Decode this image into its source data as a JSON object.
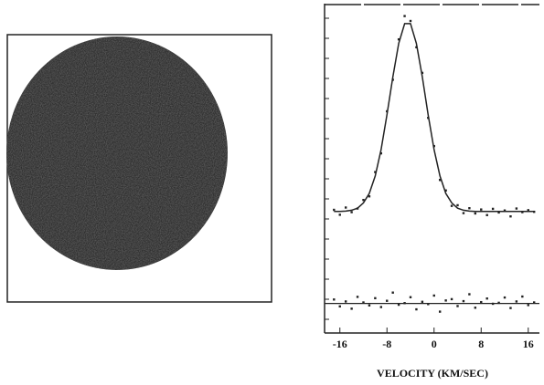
{
  "chart_data": {
    "type": "line",
    "xlabel": "VELOCITY (KM/SEC)",
    "x": [
      -17,
      -16,
      -15,
      -14,
      -13,
      -12,
      -11,
      -10,
      -9,
      -8,
      -7,
      -6,
      -5,
      -4,
      -3,
      -2,
      -1,
      0,
      1,
      2,
      3,
      4,
      5,
      6,
      7,
      8,
      9,
      10,
      11,
      12,
      13,
      14,
      15,
      16,
      17
    ],
    "xlim": [
      -18.6,
      17.9
    ],
    "xticks": [
      -16,
      -8,
      0,
      8,
      16
    ],
    "ylim": [
      0,
      100
    ],
    "color": "#222222",
    "series": [
      {
        "style": "line",
        "values": [
          37,
          37,
          37.1,
          37.4,
          38,
          39.6,
          42.5,
          47.8,
          55.8,
          66.4,
          78,
          88.2,
          94.2,
          94.2,
          88.2,
          78,
          66.4,
          55.8,
          47.8,
          42.5,
          39.6,
          38,
          37.4,
          37.1,
          37,
          37,
          37,
          37,
          37,
          37,
          37,
          37,
          37,
          37,
          37
        ]
      },
      {
        "style": "points",
        "values": [
          37.5,
          36,
          38.2,
          36.8,
          37.9,
          40.5,
          41.6,
          49,
          54.7,
          67.5,
          77.1,
          89.4,
          96.5,
          95,
          87,
          79.2,
          65.5,
          56.9,
          46.6,
          43.4,
          38.7,
          38.9,
          36.5,
          38,
          36.4,
          37.6,
          35.9,
          37.8,
          36.7,
          37.3,
          35.5,
          37.9,
          36.8,
          37.4,
          36.9
        ]
      },
      {
        "style": "points",
        "values": [
          10.2,
          8.1,
          9.6,
          7.4,
          11,
          9.3,
          8.4,
          10.6,
          7.9,
          9.8,
          12.3,
          8.6,
          9.1,
          10.9,
          7.2,
          9.5,
          8.8,
          11.4,
          6.5,
          9.9,
          10.3,
          8.2,
          9.7,
          11.8,
          7.7,
          9.4,
          10.5,
          8.9,
          9.2,
          10.8,
          7.6,
          9.6,
          11.1,
          8.5,
          9.3
        ]
      }
    ],
    "residual_zero": 9
  }
}
